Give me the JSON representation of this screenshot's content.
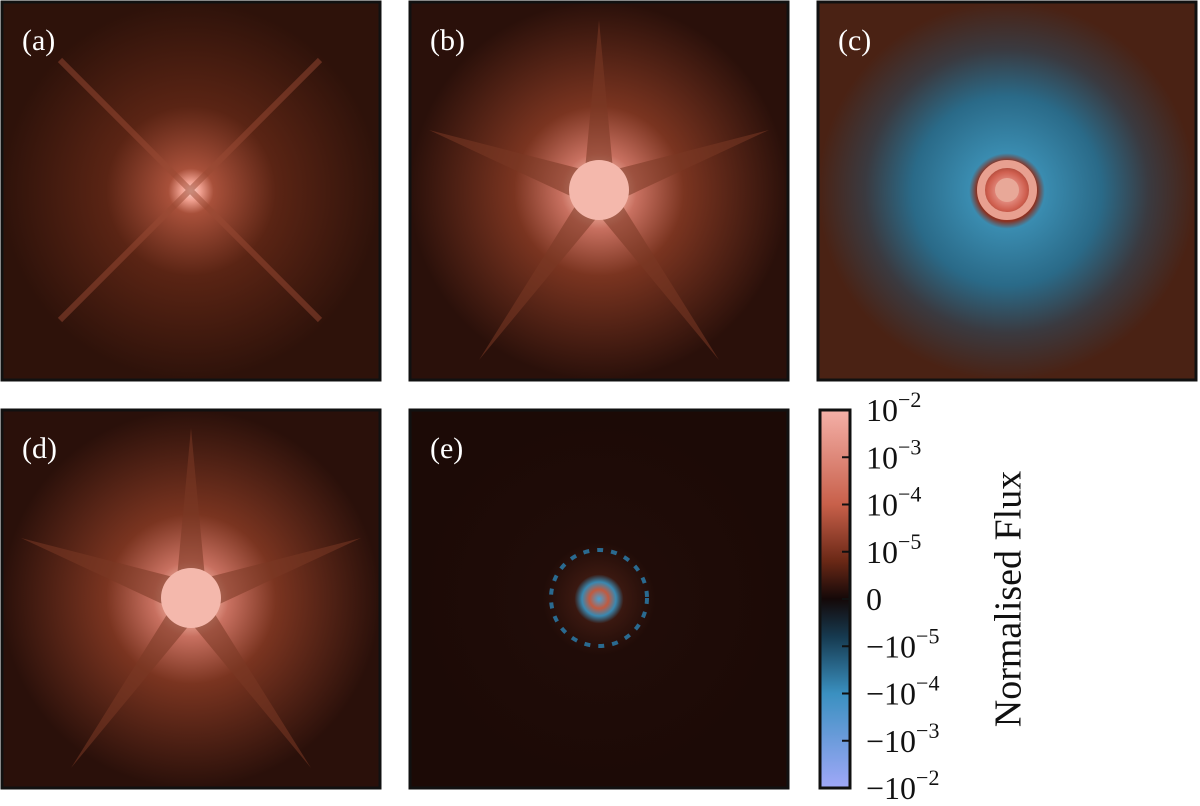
{
  "panels": [
    {
      "label": "(a)"
    },
    {
      "label": "(b)"
    },
    {
      "label": "(c)"
    },
    {
      "label": "(d)"
    },
    {
      "label": "(e)"
    }
  ],
  "colorbar": {
    "label": "Normalised Flux",
    "clim": [
      -0.01,
      0.01
    ],
    "ticks": [
      {
        "value": 0.01,
        "label": "10",
        "exponent": "−2"
      },
      {
        "value": 0.001,
        "label": "10",
        "exponent": "−3"
      },
      {
        "value": 0.0001,
        "label": "10",
        "exponent": "−4"
      },
      {
        "value": 1e-05,
        "label": "10",
        "exponent": "−5"
      },
      {
        "value": 0,
        "label": "0"
      },
      {
        "value": -1e-05,
        "label": "−10",
        "exponent": "−5"
      },
      {
        "value": -0.0001,
        "label": "−10",
        "exponent": "−4"
      },
      {
        "value": -0.001,
        "label": "−10",
        "exponent": "−3"
      },
      {
        "value": -0.01,
        "label": "−10",
        "exponent": "−2"
      }
    ]
  }
}
